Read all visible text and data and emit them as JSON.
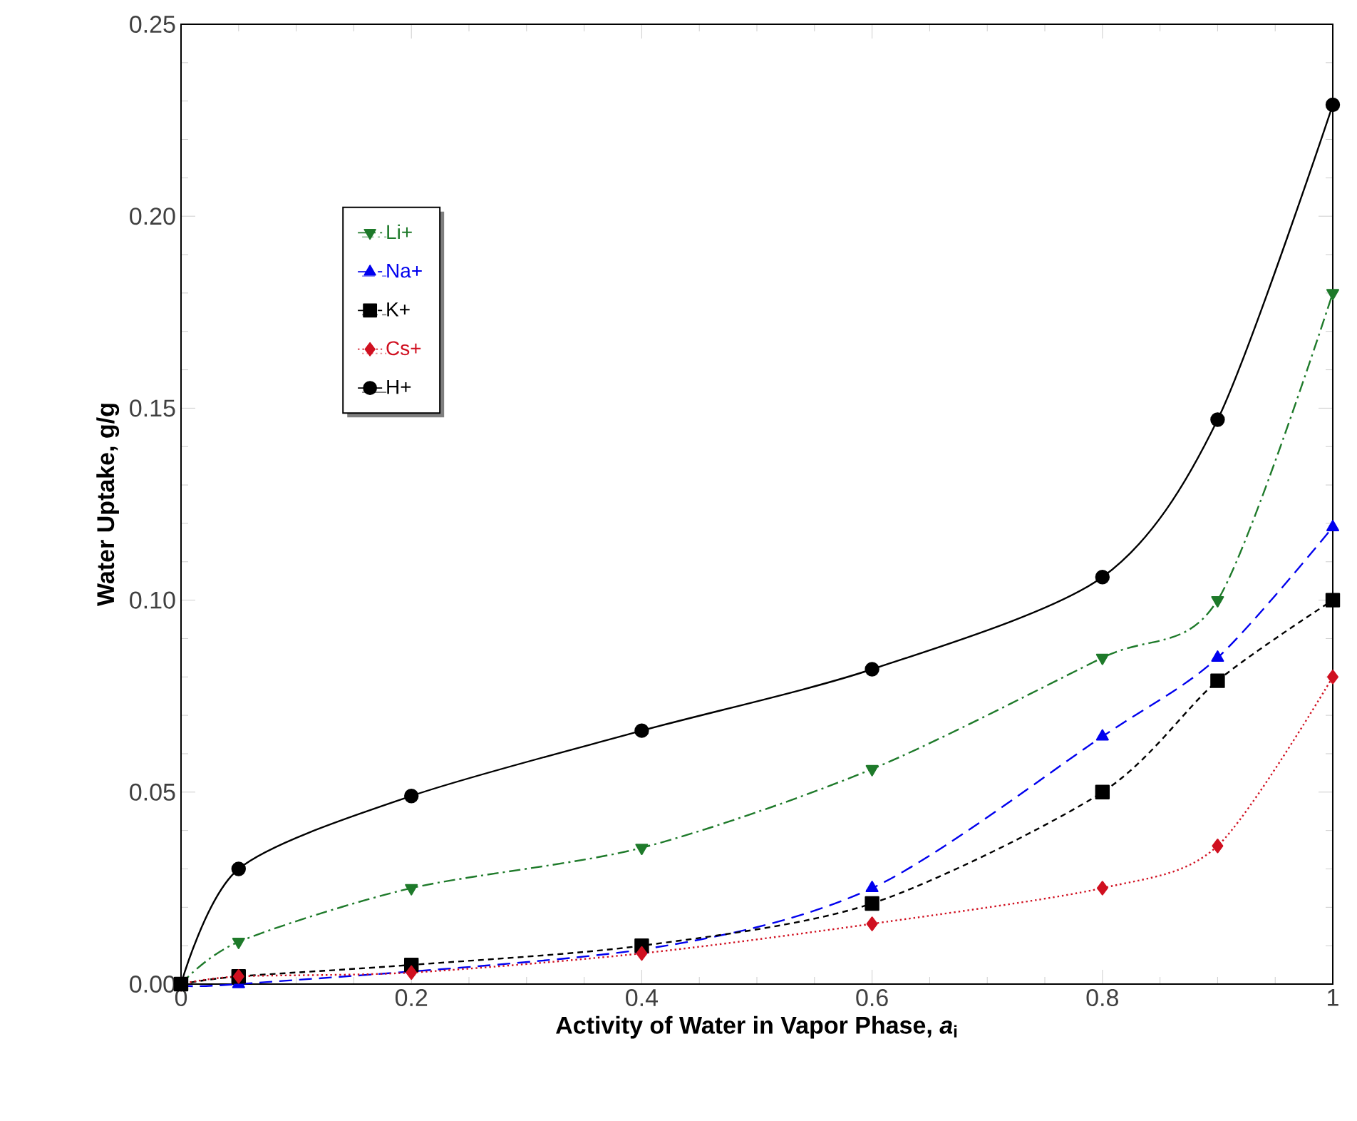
{
  "chart_data": {
    "type": "line",
    "xlabel": "Activity of Water in Vapor Phase, *a*$_{i}$",
    "ylabel": "Water Uptake, g/g",
    "x": [
      0,
      0.05,
      0.2,
      0.4,
      0.6,
      0.8,
      0.9,
      1
    ],
    "series": [
      {
        "name": "Li+",
        "color": "#1e7a2a",
        "marker": "triangle-down",
        "line_style": "dashdot",
        "values": [
          0,
          0.011,
          0.025,
          0.0355,
          0.056,
          0.085,
          0.1,
          0.18
        ]
      },
      {
        "name": "Na+",
        "color": "#0000ee",
        "marker": "triangle",
        "line_style": "dashed",
        "values": [
          0,
          0.0,
          null,
          0.009,
          0.025,
          0.0645,
          0.085,
          0.119
        ]
      },
      {
        "name": "K+",
        "color": "#000000",
        "marker": "square",
        "line_style": "densely dashed",
        "values": [
          0,
          0.002,
          0.005,
          0.01,
          0.021,
          0.05,
          0.079,
          0.1
        ]
      },
      {
        "name": "Cs+",
        "color": "#d01020",
        "marker": "diamond",
        "line_style": "dotted",
        "values": [
          0,
          0.002,
          0.003,
          0.008,
          0.0157,
          0.025,
          0.036,
          0.08
        ]
      },
      {
        "name": "H+",
        "color": "#000000",
        "marker": "circle",
        "line_style": "solid",
        "values": [
          0,
          0.03,
          0.049,
          0.066,
          0.082,
          0.106,
          0.147,
          0.229
        ]
      }
    ],
    "xlim": [
      0,
      1
    ],
    "ylim": [
      0,
      0.25
    ],
    "xticks": [
      0,
      0.2,
      0.4,
      0.6,
      0.8,
      1
    ],
    "yticks": [
      {
        "value": 0,
        "label": "0.00"
      },
      {
        "value": 0.05,
        "label": "0.05"
      },
      {
        "value": 0.1,
        "label": "0.10"
      },
      {
        "value": 0.15,
        "label": "0.15"
      },
      {
        "value": 0.2,
        "label": "0.20"
      },
      {
        "value": 0.25,
        "label": "0.25"
      }
    ],
    "grid": false,
    "legend": "top left"
  }
}
